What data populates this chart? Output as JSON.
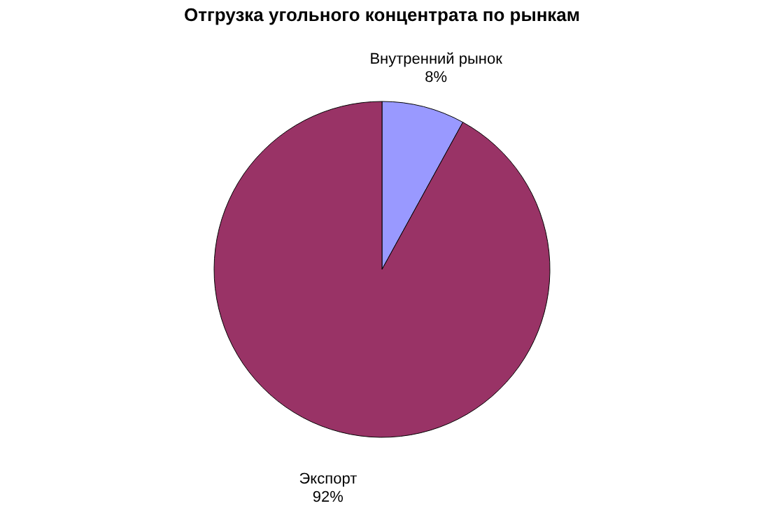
{
  "chart_data": {
    "type": "pie",
    "title": "Отгрузка угольного  концентрата  по рынкам",
    "categories": [
      "Внутренний рынок",
      "Экспорт"
    ],
    "values": [
      8,
      92
    ],
    "value_labels": [
      "8%",
      "92%"
    ],
    "colors": [
      "#9999ff",
      "#993366"
    ],
    "legend": false
  }
}
